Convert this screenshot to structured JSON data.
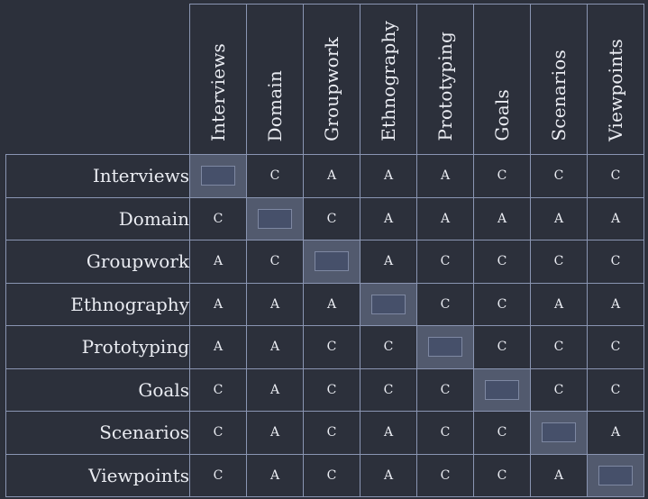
{
  "columns": [
    "Interviews",
    "Domain",
    "Groupwork",
    "Ethnography",
    "Prototyping",
    "Goals",
    "Scenarios",
    "Viewpoints"
  ],
  "rows": [
    {
      "label": "Interviews",
      "cells": [
        "",
        "C",
        "A",
        "A",
        "A",
        "C",
        "C",
        "C"
      ]
    },
    {
      "label": "Domain",
      "cells": [
        "C",
        "",
        "C",
        "A",
        "A",
        "A",
        "A",
        "A"
      ]
    },
    {
      "label": "Groupwork",
      "cells": [
        "A",
        "C",
        "",
        "A",
        "C",
        "C",
        "C",
        "C"
      ]
    },
    {
      "label": "Ethnography",
      "cells": [
        "A",
        "A",
        "A",
        "",
        "C",
        "C",
        "A",
        "A"
      ]
    },
    {
      "label": "Prototyping",
      "cells": [
        "A",
        "A",
        "C",
        "C",
        "",
        "C",
        "C",
        "C"
      ]
    },
    {
      "label": "Goals",
      "cells": [
        "C",
        "A",
        "C",
        "C",
        "C",
        "",
        "C",
        "C"
      ]
    },
    {
      "label": "Scenarios",
      "cells": [
        "C",
        "A",
        "C",
        "A",
        "C",
        "C",
        "",
        "A"
      ]
    },
    {
      "label": "Viewpoints",
      "cells": [
        "C",
        "A",
        "C",
        "A",
        "C",
        "C",
        "A",
        ""
      ]
    }
  ],
  "colors": {
    "background": "#2c303b",
    "grid": "#8a95b2",
    "diagonal": "#525a6e",
    "text": "#eaecf2"
  }
}
